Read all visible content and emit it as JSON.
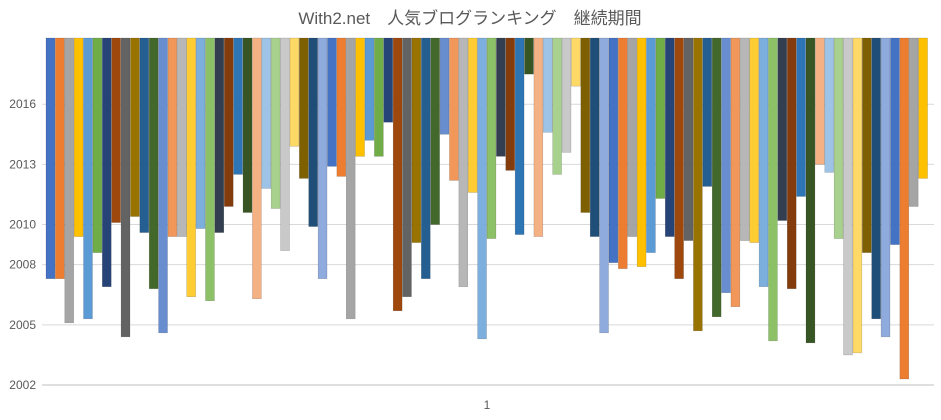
{
  "chart_data": {
    "type": "bar",
    "title": "With2.net　人気ブログランキング　継続期間",
    "categories": [
      "1"
    ],
    "ylim": [
      2002,
      2019.5
    ],
    "yticks": [
      2002,
      2005,
      2008,
      2010,
      2013,
      2016
    ],
    "grid": true,
    "legend": "none",
    "palette": [
      "#4472c4",
      "#ed7d31",
      "#a5a5a5",
      "#ffc000",
      "#5b9bd5",
      "#70ad47",
      "#264478",
      "#9e480e",
      "#636363",
      "#997300",
      "#255e91",
      "#43682b",
      "#698ed0",
      "#f1975a",
      "#b7b7b7",
      "#ffcd33",
      "#7cafdd",
      "#8cc168",
      "#333f50",
      "#843c0c",
      "#2e75b6",
      "#375623",
      "#f4b183",
      "#9dc3e6",
      "#a9d18e",
      "#c9c9c9",
      "#ffd966",
      "#7f6000",
      "#1f4e79",
      "#8faadc"
    ],
    "series": [
      {
        "values": [
          [
            2019.3,
            2007.3
          ],
          [
            2019.3,
            2007.3
          ],
          [
            2019.3,
            2005.1
          ],
          [
            2019.3,
            2009.4
          ],
          [
            2019.3,
            2005.3
          ],
          [
            2019.3,
            2008.6
          ],
          [
            2019.3,
            2006.9
          ],
          [
            2019.3,
            2010.1
          ],
          [
            2019.3,
            2004.4
          ],
          [
            2019.3,
            2010.4
          ],
          [
            2019.3,
            2009.6
          ],
          [
            2019.3,
            2006.8
          ],
          [
            2019.3,
            2004.6
          ],
          [
            2019.3,
            2009.4
          ],
          [
            2019.3,
            2009.4
          ],
          [
            2019.3,
            2006.4
          ],
          [
            2019.3,
            2009.8
          ],
          [
            2019.3,
            2006.2
          ],
          [
            2019.3,
            2009.6
          ],
          [
            2019.3,
            2010.9
          ],
          [
            2019.3,
            2012.5
          ],
          [
            2019.3,
            2010.6
          ],
          [
            2019.3,
            2006.3
          ],
          [
            2019.3,
            2011.8
          ],
          [
            2019.3,
            2010.8
          ],
          [
            2019.3,
            2008.7
          ],
          [
            2019.3,
            2013.9
          ],
          [
            2019.3,
            2012.3
          ],
          [
            2019.3,
            2009.9
          ],
          [
            2019.3,
            2007.3
          ],
          [
            2019.3,
            2012.9
          ],
          [
            2019.3,
            2012.4
          ],
          [
            2019.3,
            2005.3
          ],
          [
            2019.3,
            2013.4
          ],
          [
            2019.3,
            2014.2
          ],
          [
            2019.3,
            2013.4
          ],
          [
            2019.3,
            2015.1
          ],
          [
            2019.3,
            2005.7
          ],
          [
            2019.3,
            2006.4
          ],
          [
            2019.3,
            2009.1
          ],
          [
            2019.3,
            2007.3
          ],
          [
            2019.3,
            2010.0
          ],
          [
            2019.3,
            2014.5
          ],
          [
            2019.3,
            2012.2
          ],
          [
            2019.3,
            2006.9
          ],
          [
            2019.3,
            2011.6
          ],
          [
            2019.3,
            2004.3
          ],
          [
            2019.3,
            2009.3
          ],
          [
            2019.3,
            2013.4
          ],
          [
            2019.3,
            2012.7
          ],
          [
            2019.3,
            2009.5
          ],
          [
            2019.3,
            2017.5
          ],
          [
            2019.3,
            2009.4
          ],
          [
            2019.3,
            2014.6
          ],
          [
            2019.3,
            2012.5
          ],
          [
            2019.3,
            2013.6
          ],
          [
            2019.3,
            2016.9
          ],
          [
            2019.3,
            2010.6
          ],
          [
            2019.3,
            2009.4
          ],
          [
            2019.3,
            2004.6
          ],
          [
            2019.3,
            2008.1
          ],
          [
            2019.3,
            2007.8
          ],
          [
            2019.3,
            2009.4
          ],
          [
            2019.3,
            2007.9
          ],
          [
            2019.3,
            2008.6
          ],
          [
            2019.3,
            2011.3
          ],
          [
            2019.3,
            2009.4
          ],
          [
            2019.3,
            2007.3
          ],
          [
            2019.3,
            2009.2
          ],
          [
            2019.3,
            2004.7
          ],
          [
            2019.3,
            2011.9
          ],
          [
            2019.3,
            2005.4
          ],
          [
            2019.3,
            2006.6
          ],
          [
            2019.3,
            2005.9
          ],
          [
            2019.3,
            2009.2
          ],
          [
            2019.3,
            2009.1
          ],
          [
            2019.3,
            2006.9
          ],
          [
            2019.3,
            2004.2
          ],
          [
            2019.3,
            2010.2
          ],
          [
            2019.3,
            2006.8
          ],
          [
            2019.3,
            2011.4
          ],
          [
            2019.3,
            2004.1
          ],
          [
            2019.3,
            2013.0
          ],
          [
            2019.3,
            2012.6
          ],
          [
            2019.3,
            2009.3
          ],
          [
            2019.3,
            2003.5
          ],
          [
            2019.3,
            2003.6
          ],
          [
            2019.3,
            2008.6
          ],
          [
            2019.3,
            2005.3
          ],
          [
            2019.3,
            2004.4
          ],
          [
            2019.3,
            2009.0
          ],
          [
            2019.3,
            2002.3
          ],
          [
            2019.3,
            2010.9
          ],
          [
            2019.3,
            2012.3
          ]
        ]
      }
    ]
  }
}
